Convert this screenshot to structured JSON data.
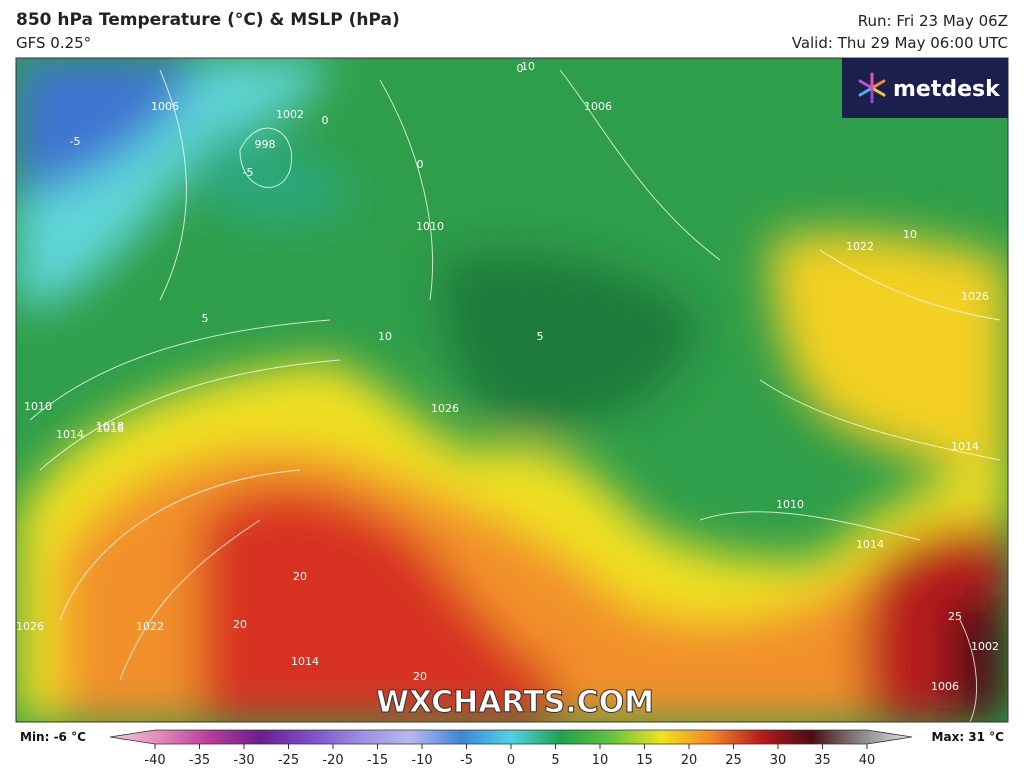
{
  "header": {
    "title": "850 hPa Temperature (°C) & MSLP (hPa)",
    "subtitle": "GFS 0.25°",
    "run": "Run: Fri 23 May 06Z",
    "valid": "Valid: Thu 29 May 06:00 UTC"
  },
  "logo": "metdesk",
  "watermark": "WXCHARTS.COM",
  "contour_labels": [
    "1006",
    "1002",
    "998",
    "0",
    "0",
    "0",
    "-5",
    "-5",
    "1006",
    "1010",
    "5",
    "10",
    "10",
    "1022",
    "1026",
    "1018",
    "1010",
    "1014",
    "1018",
    "1026",
    "1014",
    "1010",
    "1014",
    "20",
    "20",
    "1022",
    "1026",
    "1014",
    "20",
    "1006",
    "1002",
    "25",
    "5",
    "10"
  ],
  "legend": {
    "min": "Min: -6 °C",
    "max": "Max: 31 °C",
    "ticks": [
      -40,
      -35,
      -30,
      -25,
      -20,
      -15,
      -10,
      -5,
      0,
      5,
      10,
      15,
      20,
      25,
      30,
      35,
      40
    ],
    "colors": [
      "#f4c9de",
      "#e389b8",
      "#b83c98",
      "#6c1f8c",
      "#7d4fcb",
      "#9a8fe0",
      "#b9b8ee",
      "#3f86d6",
      "#4fd3e3",
      "#1fa24c",
      "#62c43c",
      "#f1e21e",
      "#f2862a",
      "#b81a1a",
      "#4a0f14",
      "#8a8a8a",
      "#e6e6e6"
    ]
  }
}
